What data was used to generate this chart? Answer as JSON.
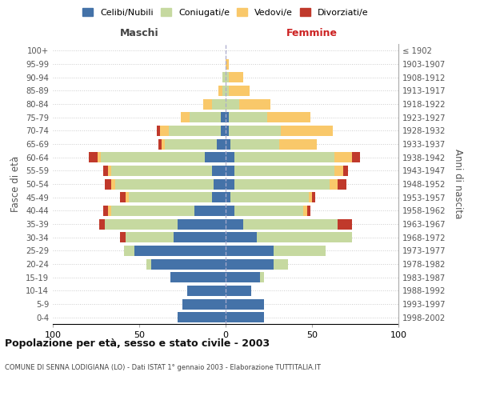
{
  "age_groups": [
    "0-4",
    "5-9",
    "10-14",
    "15-19",
    "20-24",
    "25-29",
    "30-34",
    "35-39",
    "40-44",
    "45-49",
    "50-54",
    "55-59",
    "60-64",
    "65-69",
    "70-74",
    "75-79",
    "80-84",
    "85-89",
    "90-94",
    "95-99",
    "100+"
  ],
  "birth_years": [
    "1998-2002",
    "1993-1997",
    "1988-1992",
    "1983-1987",
    "1978-1982",
    "1973-1977",
    "1968-1972",
    "1963-1967",
    "1958-1962",
    "1953-1957",
    "1948-1952",
    "1943-1947",
    "1938-1942",
    "1933-1937",
    "1928-1932",
    "1923-1927",
    "1918-1922",
    "1913-1917",
    "1908-1912",
    "1903-1907",
    "≤ 1902"
  ],
  "males": {
    "celibi": [
      28,
      25,
      22,
      32,
      43,
      53,
      30,
      28,
      18,
      8,
      7,
      8,
      12,
      5,
      3,
      3,
      0,
      0,
      0,
      0,
      0
    ],
    "coniugati": [
      0,
      0,
      0,
      0,
      3,
      6,
      28,
      42,
      48,
      48,
      57,
      58,
      60,
      30,
      30,
      18,
      8,
      2,
      2,
      0,
      0
    ],
    "vedovi": [
      0,
      0,
      0,
      0,
      0,
      0,
      0,
      0,
      2,
      2,
      2,
      2,
      2,
      2,
      5,
      5,
      5,
      2,
      0,
      0,
      0
    ],
    "divorziati": [
      0,
      0,
      0,
      0,
      0,
      0,
      3,
      3,
      3,
      3,
      4,
      3,
      5,
      2,
      2,
      0,
      0,
      0,
      0,
      0,
      0
    ]
  },
  "females": {
    "nubili": [
      22,
      22,
      15,
      20,
      28,
      28,
      18,
      10,
      5,
      3,
      5,
      5,
      5,
      3,
      2,
      2,
      0,
      0,
      0,
      0,
      0
    ],
    "coniugate": [
      0,
      0,
      0,
      2,
      8,
      30,
      55,
      55,
      40,
      45,
      55,
      58,
      58,
      28,
      30,
      22,
      8,
      2,
      2,
      0,
      0
    ],
    "vedove": [
      0,
      0,
      0,
      0,
      0,
      0,
      0,
      0,
      2,
      2,
      5,
      5,
      10,
      22,
      30,
      25,
      18,
      12,
      8,
      2,
      0
    ],
    "divorziate": [
      0,
      0,
      0,
      0,
      0,
      0,
      0,
      8,
      2,
      2,
      5,
      3,
      5,
      0,
      0,
      0,
      0,
      0,
      0,
      0,
      0
    ]
  },
  "colors": {
    "celibi": "#4472a8",
    "coniugati": "#c6d9a0",
    "vedovi": "#f9c86a",
    "divorziati": "#c0392b"
  },
  "xlim": 100,
  "title": "Popolazione per età, sesso e stato civile - 2003",
  "subtitle": "COMUNE DI SENNA LODIGIANA (LO) - Dati ISTAT 1° gennaio 2003 - Elaborazione TUTTITALIA.IT",
  "ylabel_left": "Fasce di età",
  "ylabel_right": "Anni di nascita",
  "xlabel_left": "Maschi",
  "xlabel_right": "Femmine"
}
